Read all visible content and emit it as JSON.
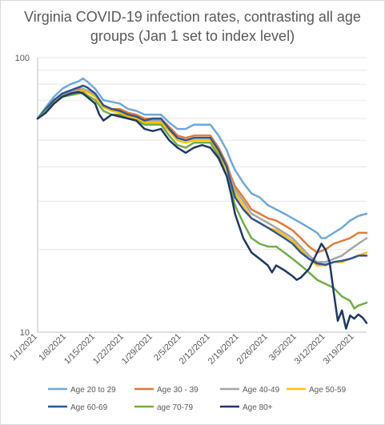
{
  "chart_data": {
    "type": "line",
    "title": "Virginia COVID-19 infection rates, contrasting all age groups (Jan 1 set to index level)",
    "xlabel": "",
    "ylabel": "",
    "y_scale": "log",
    "ylim": [
      10,
      100
    ],
    "y_ticks": [
      "100",
      "10"
    ],
    "grid": true,
    "legend_position": "bottom",
    "x_ticks": [
      "1/1/2021",
      "1/8/2021",
      "1/15/2021",
      "1/22/2021",
      "1/29/2021",
      "2/5/2021",
      "2/12/2021",
      "2/19/2021",
      "2/26/2021",
      "3/5/2021",
      "3/12/2021",
      "3/19/2021"
    ],
    "x_days_offset": [
      0,
      7,
      14,
      21,
      28,
      35,
      42,
      49,
      56,
      63,
      70,
      77
    ],
    "series": [
      {
        "name": "Age 20 to 29",
        "color": "#6fa8dc",
        "values": [
          [
            0,
            60
          ],
          [
            2,
            66
          ],
          [
            4,
            72
          ],
          [
            6,
            77
          ],
          [
            8,
            80
          ],
          [
            10,
            82
          ],
          [
            11,
            84
          ],
          [
            12,
            82
          ],
          [
            14,
            77
          ],
          [
            16,
            70
          ],
          [
            18,
            69
          ],
          [
            20,
            68
          ],
          [
            22,
            65
          ],
          [
            24,
            64
          ],
          [
            26,
            62
          ],
          [
            28,
            62
          ],
          [
            30,
            62
          ],
          [
            32,
            58
          ],
          [
            34,
            55
          ],
          [
            36,
            55
          ],
          [
            38,
            57
          ],
          [
            40,
            57
          ],
          [
            42,
            57
          ],
          [
            44,
            52
          ],
          [
            46,
            46
          ],
          [
            47,
            42
          ],
          [
            48,
            39
          ],
          [
            50,
            35
          ],
          [
            52,
            32
          ],
          [
            54,
            31
          ],
          [
            56,
            29
          ],
          [
            58,
            28
          ],
          [
            60,
            27
          ],
          [
            62,
            26
          ],
          [
            64,
            25
          ],
          [
            66,
            24
          ],
          [
            68,
            23
          ],
          [
            69,
            22
          ],
          [
            70,
            22
          ],
          [
            72,
            23
          ],
          [
            74,
            24
          ],
          [
            76,
            25.5
          ],
          [
            78,
            26.5
          ],
          [
            80,
            27
          ]
        ]
      },
      {
        "name": "Age 30 - 39",
        "color": "#e07b39",
        "values": [
          [
            0,
            60
          ],
          [
            2,
            65
          ],
          [
            4,
            70
          ],
          [
            6,
            74
          ],
          [
            8,
            76
          ],
          [
            10,
            77
          ],
          [
            11,
            79
          ],
          [
            12,
            78
          ],
          [
            14,
            74
          ],
          [
            16,
            67
          ],
          [
            18,
            65
          ],
          [
            20,
            65
          ],
          [
            22,
            63
          ],
          [
            24,
            62
          ],
          [
            26,
            60
          ],
          [
            28,
            60
          ],
          [
            30,
            60
          ],
          [
            32,
            56
          ],
          [
            34,
            52
          ],
          [
            36,
            51
          ],
          [
            38,
            52
          ],
          [
            40,
            52
          ],
          [
            42,
            52
          ],
          [
            44,
            47
          ],
          [
            46,
            41
          ],
          [
            47,
            37
          ],
          [
            48,
            34
          ],
          [
            50,
            31
          ],
          [
            52,
            28
          ],
          [
            54,
            27
          ],
          [
            56,
            26
          ],
          [
            58,
            25.5
          ],
          [
            60,
            24.5
          ],
          [
            62,
            23.5
          ],
          [
            64,
            22
          ],
          [
            66,
            20.5
          ],
          [
            68,
            19.5
          ],
          [
            70,
            20
          ],
          [
            72,
            21
          ],
          [
            74,
            21.5
          ],
          [
            76,
            22
          ],
          [
            78,
            23
          ],
          [
            80,
            23
          ]
        ]
      },
      {
        "name": "Age 40-49",
        "color": "#a6a6a6",
        "values": [
          [
            0,
            60
          ],
          [
            2,
            65
          ],
          [
            4,
            70
          ],
          [
            6,
            73
          ],
          [
            8,
            75
          ],
          [
            10,
            76
          ],
          [
            11,
            77
          ],
          [
            12,
            76
          ],
          [
            14,
            73
          ],
          [
            16,
            67
          ],
          [
            18,
            65
          ],
          [
            20,
            64
          ],
          [
            22,
            62
          ],
          [
            24,
            61
          ],
          [
            26,
            59
          ],
          [
            28,
            59
          ],
          [
            30,
            59
          ],
          [
            32,
            55
          ],
          [
            34,
            51
          ],
          [
            36,
            50
          ],
          [
            38,
            51
          ],
          [
            40,
            51
          ],
          [
            42,
            51
          ],
          [
            44,
            46
          ],
          [
            46,
            40
          ],
          [
            47,
            36
          ],
          [
            48,
            33
          ],
          [
            50,
            30
          ],
          [
            52,
            27
          ],
          [
            54,
            26
          ],
          [
            56,
            25
          ],
          [
            58,
            24
          ],
          [
            60,
            23
          ],
          [
            62,
            22
          ],
          [
            64,
            20.5
          ],
          [
            66,
            19
          ],
          [
            68,
            18
          ],
          [
            70,
            18
          ],
          [
            72,
            18.5
          ],
          [
            74,
            19
          ],
          [
            76,
            20
          ],
          [
            78,
            21
          ],
          [
            80,
            22
          ]
        ]
      },
      {
        "name": "Age 50-59",
        "color": "#ffc000",
        "values": [
          [
            0,
            60
          ],
          [
            2,
            64
          ],
          [
            4,
            69
          ],
          [
            6,
            72
          ],
          [
            8,
            74
          ],
          [
            10,
            75
          ],
          [
            11,
            76
          ],
          [
            12,
            75
          ],
          [
            14,
            72
          ],
          [
            16,
            66
          ],
          [
            18,
            64
          ],
          [
            20,
            63
          ],
          [
            22,
            61
          ],
          [
            24,
            60
          ],
          [
            26,
            58
          ],
          [
            28,
            58
          ],
          [
            30,
            58
          ],
          [
            32,
            54
          ],
          [
            34,
            50
          ],
          [
            36,
            49
          ],
          [
            38,
            50
          ],
          [
            40,
            50
          ],
          [
            42,
            50
          ],
          [
            44,
            45
          ],
          [
            46,
            39
          ],
          [
            47,
            35
          ],
          [
            48,
            32
          ],
          [
            50,
            29
          ],
          [
            52,
            26
          ],
          [
            54,
            25
          ],
          [
            56,
            24
          ],
          [
            58,
            23.5
          ],
          [
            60,
            22.5
          ],
          [
            62,
            21.5
          ],
          [
            64,
            20
          ],
          [
            66,
            18.5
          ],
          [
            68,
            17.5
          ],
          [
            70,
            17.5
          ],
          [
            72,
            18
          ],
          [
            74,
            18
          ],
          [
            76,
            18.5
          ],
          [
            78,
            19
          ],
          [
            80,
            19.5
          ]
        ]
      },
      {
        "name": "Age 60-69",
        "color": "#2e5597",
        "values": [
          [
            0,
            60
          ],
          [
            2,
            65
          ],
          [
            4,
            70
          ],
          [
            6,
            74
          ],
          [
            8,
            76
          ],
          [
            10,
            78
          ],
          [
            11,
            79
          ],
          [
            12,
            78
          ],
          [
            14,
            74
          ],
          [
            16,
            67
          ],
          [
            18,
            65
          ],
          [
            20,
            64
          ],
          [
            22,
            62
          ],
          [
            24,
            61
          ],
          [
            26,
            59
          ],
          [
            28,
            60
          ],
          [
            30,
            60
          ],
          [
            32,
            55
          ],
          [
            34,
            51
          ],
          [
            36,
            50
          ],
          [
            38,
            51
          ],
          [
            40,
            51
          ],
          [
            42,
            51
          ],
          [
            44,
            46
          ],
          [
            46,
            40
          ],
          [
            47,
            35
          ],
          [
            48,
            31
          ],
          [
            50,
            28
          ],
          [
            52,
            26
          ],
          [
            54,
            25
          ],
          [
            56,
            24
          ],
          [
            58,
            23
          ],
          [
            60,
            22
          ],
          [
            62,
            21
          ],
          [
            64,
            19.5
          ],
          [
            66,
            18.5
          ],
          [
            68,
            17.8
          ],
          [
            70,
            17.6
          ],
          [
            72,
            18
          ],
          [
            74,
            18.2
          ],
          [
            76,
            18.5
          ],
          [
            78,
            19
          ],
          [
            80,
            19
          ]
        ]
      },
      {
        "name": "age 70-79",
        "color": "#70ad47",
        "values": [
          [
            0,
            60
          ],
          [
            2,
            64
          ],
          [
            4,
            68
          ],
          [
            6,
            72
          ],
          [
            8,
            73
          ],
          [
            10,
            74
          ],
          [
            11,
            75
          ],
          [
            12,
            73
          ],
          [
            14,
            70
          ],
          [
            16,
            64
          ],
          [
            18,
            62
          ],
          [
            20,
            62
          ],
          [
            22,
            60
          ],
          [
            24,
            59
          ],
          [
            26,
            57
          ],
          [
            28,
            57
          ],
          [
            30,
            57
          ],
          [
            32,
            52
          ],
          [
            34,
            48
          ],
          [
            36,
            47
          ],
          [
            38,
            49
          ],
          [
            40,
            49
          ],
          [
            42,
            49
          ],
          [
            44,
            44
          ],
          [
            46,
            37
          ],
          [
            47,
            33
          ],
          [
            48,
            29
          ],
          [
            50,
            25
          ],
          [
            52,
            22
          ],
          [
            54,
            21
          ],
          [
            56,
            20.5
          ],
          [
            58,
            20.5
          ],
          [
            60,
            19.5
          ],
          [
            62,
            18.5
          ],
          [
            64,
            17.5
          ],
          [
            66,
            16.5
          ],
          [
            68,
            15.5
          ],
          [
            70,
            15
          ],
          [
            72,
            14.5
          ],
          [
            74,
            13.5
          ],
          [
            76,
            13
          ],
          [
            77,
            12.2
          ],
          [
            78,
            12.5
          ],
          [
            80,
            12.8
          ]
        ]
      },
      {
        "name": "Age 80+",
        "color": "#1f3864",
        "values": [
          [
            0,
            60
          ],
          [
            2,
            63
          ],
          [
            4,
            68
          ],
          [
            6,
            72
          ],
          [
            8,
            74
          ],
          [
            10,
            75
          ],
          [
            11,
            74
          ],
          [
            12,
            72
          ],
          [
            14,
            68
          ],
          [
            15,
            62
          ],
          [
            16,
            59
          ],
          [
            18,
            62
          ],
          [
            20,
            61
          ],
          [
            22,
            60
          ],
          [
            24,
            59
          ],
          [
            26,
            55
          ],
          [
            28,
            54
          ],
          [
            30,
            55
          ],
          [
            32,
            50
          ],
          [
            34,
            47
          ],
          [
            36,
            45
          ],
          [
            38,
            47
          ],
          [
            40,
            48
          ],
          [
            42,
            47
          ],
          [
            44,
            43
          ],
          [
            46,
            37
          ],
          [
            47,
            32
          ],
          [
            48,
            27
          ],
          [
            50,
            22
          ],
          [
            52,
            19.5
          ],
          [
            54,
            18.5
          ],
          [
            56,
            17.5
          ],
          [
            57,
            16.5
          ],
          [
            58,
            17.5
          ],
          [
            60,
            16.8
          ],
          [
            62,
            16
          ],
          [
            63,
            15.5
          ],
          [
            64,
            15.8
          ],
          [
            66,
            17
          ],
          [
            68,
            19.5
          ],
          [
            69,
            21
          ],
          [
            70,
            20
          ],
          [
            71,
            18
          ],
          [
            72,
            14
          ],
          [
            73,
            11
          ],
          [
            74,
            12
          ],
          [
            75,
            10.3
          ],
          [
            76,
            11.5
          ],
          [
            77,
            11.2
          ],
          [
            78,
            11.6
          ],
          [
            79,
            11.3
          ],
          [
            80,
            10.8
          ]
        ]
      }
    ]
  }
}
